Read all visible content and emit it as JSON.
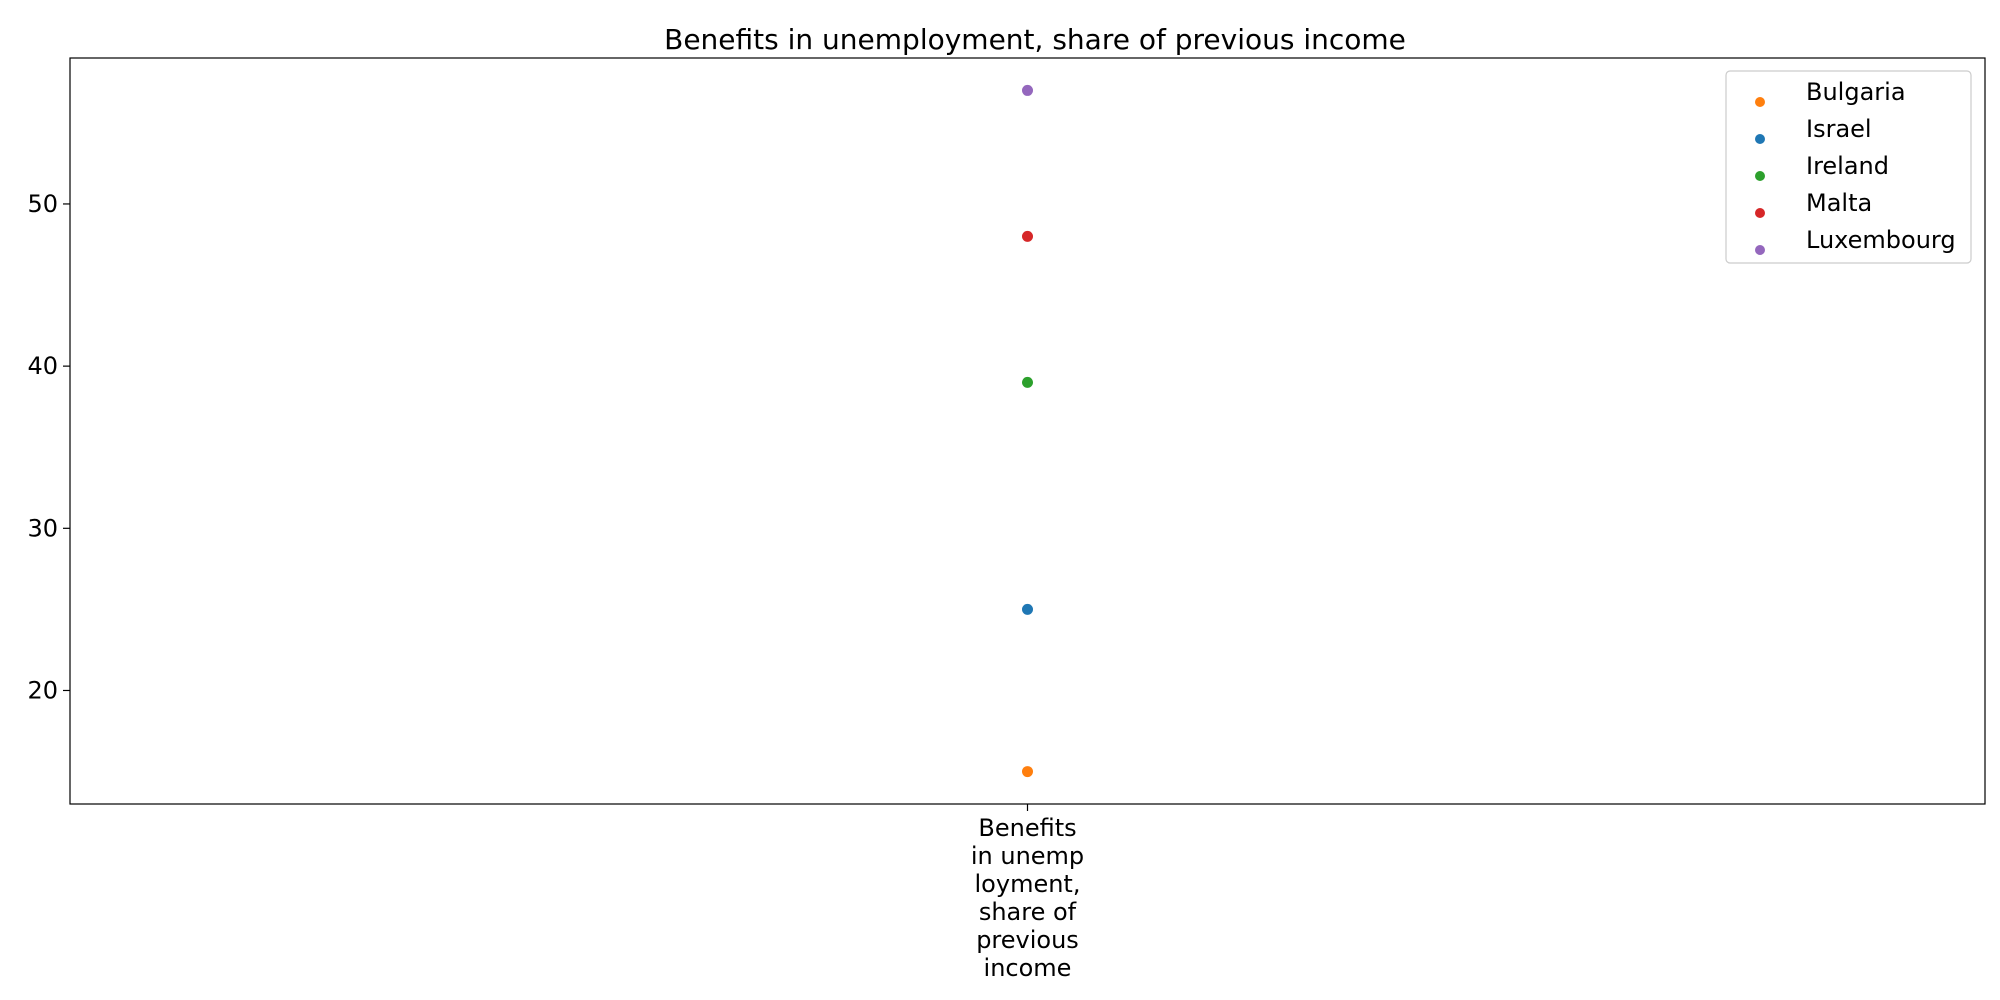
{
  "chart_data": {
    "type": "scatter",
    "title": "Benefits in unemployment, share of previous income",
    "xlabel": "",
    "ylabel": "",
    "categories": [
      "Benefits in unemployment, share of previous income"
    ],
    "x_tick_label_lines": [
      "Benefits",
      "in unemp",
      "loyment,",
      "share of",
      "previous",
      "income"
    ],
    "y_ticks": [
      20,
      30,
      40,
      50
    ],
    "ylim": [
      13,
      59
    ],
    "grid": false,
    "legend_position": "top-right",
    "series": [
      {
        "name": "Bulgaria",
        "color": "#ff7f0e",
        "values": [
          15
        ]
      },
      {
        "name": "Israel",
        "color": "#1f77b4",
        "values": [
          25
        ]
      },
      {
        "name": "Ireland",
        "color": "#2ca02c",
        "values": [
          39
        ]
      },
      {
        "name": "Malta",
        "color": "#d62728",
        "values": [
          48
        ]
      },
      {
        "name": "Luxembourg",
        "color": "#9467bd",
        "values": [
          57
        ]
      }
    ]
  }
}
